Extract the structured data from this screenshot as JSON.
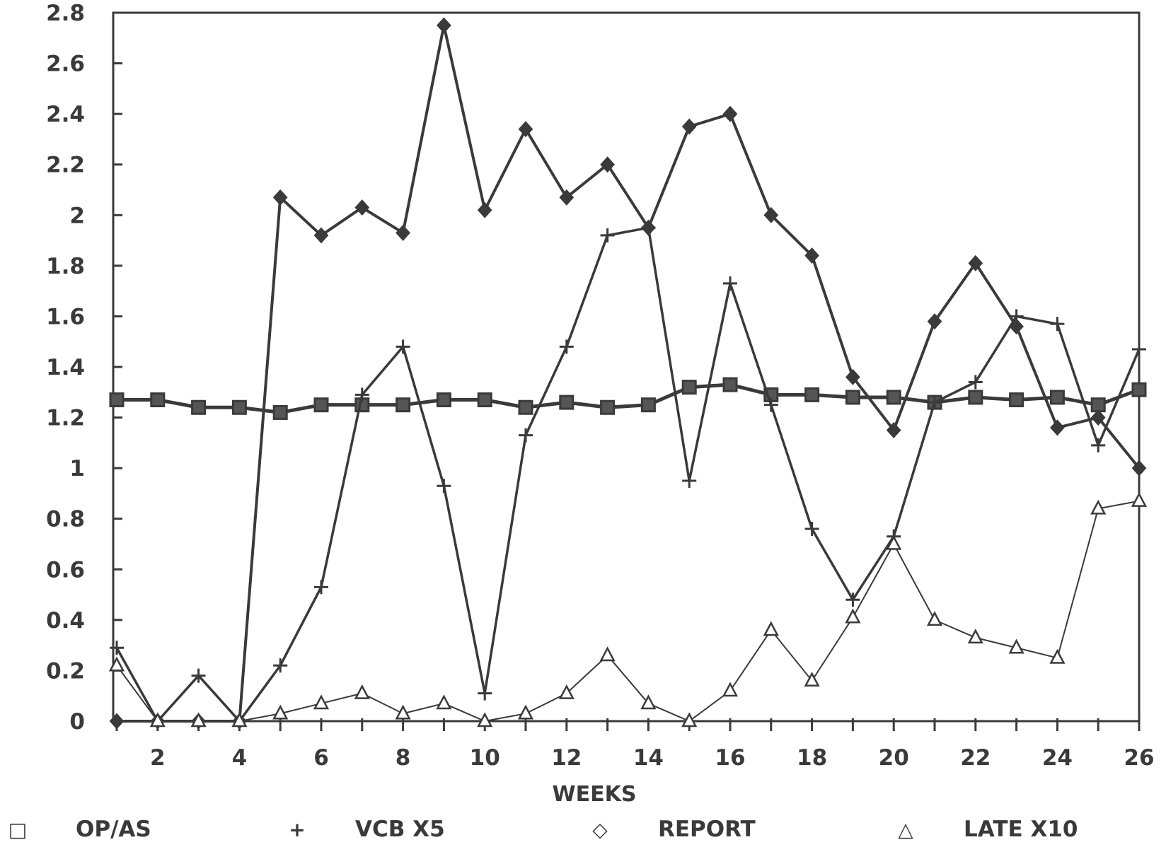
{
  "chart_data": {
    "type": "line",
    "title": "",
    "xlabel": "WEEKS",
    "ylabel": "",
    "xlim": [
      1,
      26
    ],
    "ylim": [
      0,
      2.8
    ],
    "x_ticks": [
      2,
      4,
      6,
      8,
      10,
      12,
      14,
      16,
      18,
      20,
      22,
      24,
      26
    ],
    "x_tick_labels": [
      "2",
      "4",
      "6",
      "8",
      "10",
      "12",
      "14",
      "16",
      "18",
      "20",
      "22",
      "24",
      "26"
    ],
    "y_ticks": [
      0,
      0.2,
      0.4,
      0.6,
      0.8,
      1,
      1.2,
      1.4,
      1.6,
      1.8,
      2,
      2.2,
      2.4,
      2.6,
      2.8
    ],
    "y_tick_labels": [
      "0",
      "0.2",
      "0.4",
      "0.6",
      "0.8",
      "1",
      "1.2",
      "1.4",
      "1.6",
      "1.8",
      "2",
      "2.2",
      "2.4",
      "2.6",
      "2.8"
    ],
    "grid": false,
    "legend_position": "bottom",
    "x": [
      1,
      2,
      3,
      4,
      5,
      6,
      7,
      8,
      9,
      10,
      11,
      12,
      13,
      14,
      15,
      16,
      17,
      18,
      19,
      20,
      21,
      22,
      23,
      24,
      25,
      26
    ],
    "series": [
      {
        "name": "OP/AS",
        "marker": "square",
        "marker_symbol": "□",
        "values": [
          1.27,
          1.27,
          1.24,
          1.24,
          1.22,
          1.25,
          1.25,
          1.25,
          1.27,
          1.27,
          1.24,
          1.26,
          1.24,
          1.25,
          1.32,
          1.33,
          1.29,
          1.29,
          1.28,
          1.28,
          1.26,
          1.28,
          1.27,
          1.28,
          1.25,
          1.31
        ]
      },
      {
        "name": "VCB X5",
        "marker": "plus",
        "marker_symbol": "+",
        "values": [
          0.29,
          0,
          0.18,
          0,
          0.22,
          0.53,
          1.29,
          1.48,
          0.93,
          0.11,
          1.13,
          1.48,
          1.92,
          1.95,
          0.95,
          1.73,
          1.25,
          0.76,
          0.48,
          0.73,
          1.26,
          1.34,
          1.6,
          1.57,
          1.09,
          1.47
        ]
      },
      {
        "name": "REPORT",
        "marker": "diamond",
        "marker_symbol": "◇",
        "values": [
          0,
          0,
          0,
          0,
          2.07,
          1.92,
          2.03,
          1.93,
          2.75,
          2.02,
          2.34,
          2.07,
          2.2,
          1.95,
          2.35,
          2.4,
          2.0,
          1.84,
          1.36,
          1.15,
          1.58,
          1.81,
          1.56,
          1.16,
          1.2,
          1.0
        ]
      },
      {
        "name": "LATE X10",
        "marker": "triangle",
        "marker_symbol": "△",
        "values": [
          0.22,
          0,
          0,
          0,
          0.03,
          0.07,
          0.11,
          0.03,
          0.07,
          0,
          0.03,
          0.11,
          0.26,
          0.07,
          0,
          0.12,
          0.36,
          0.16,
          0.41,
          0.7,
          0.4,
          0.33,
          0.29,
          0.25,
          0.84,
          0.87
        ]
      }
    ]
  }
}
